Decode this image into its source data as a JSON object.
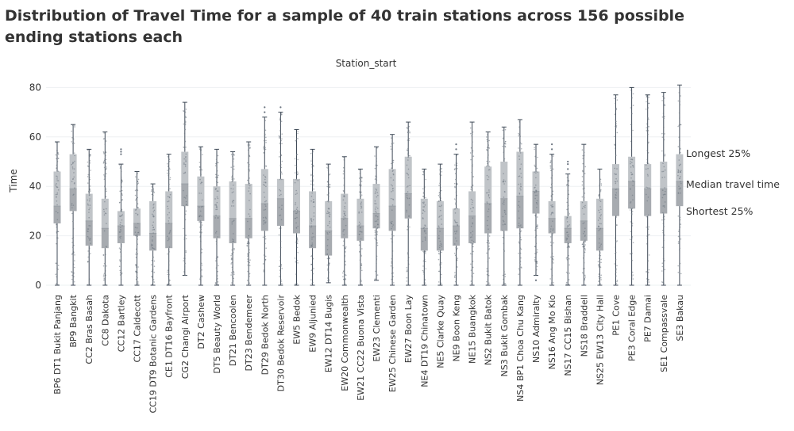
{
  "chart_data": {
    "type": "box",
    "title": "Distribution of Travel Time for a sample of 40 train stations across 156 possible ending stations each",
    "column_header": "Station_start",
    "ylabel": "Time",
    "xlabel": "",
    "ylim": [
      0,
      83
    ],
    "yticks": [
      0,
      20,
      40,
      60,
      80
    ],
    "grid": true,
    "legend_placement": "right",
    "annotations": [
      "Longest 25%",
      "Median travel time",
      "Shortest 25%"
    ],
    "colors": {
      "box": "#c0c4c8",
      "box_lower": "#a7abb0",
      "points": "#6b7480",
      "whisker": "#3f4a57",
      "grid": "#eef0f2"
    },
    "categories": [
      "BP6 DT1 Bukit Panjang",
      "BP9 Bangkit",
      "CC2 Bras Basah",
      "CC8 Dakota",
      "CC12 Bartley",
      "CC17 Caldecott",
      "CC19 DT9 Botanic Gardens",
      "CE1 DT16 Bayfront",
      "CG2 Changi Airport",
      "DT2 Cashew",
      "DT5 Beauty World",
      "DT21 Bencoolen",
      "DT23 Bendemeer",
      "DT29 Bedok North",
      "DT30 Bedok Reservoir",
      "EW5 Bedok",
      "EW9 Aljunied",
      "EW12 DT14 Bugis",
      "EW20 Commonwealth",
      "EW21 CC22 Buona Vista",
      "EW23 Clementi",
      "EW25 Chinese Garden",
      "EW27 Boon Lay",
      "NE4 DT19 Chinatown",
      "NE5 Clarke Quay",
      "NE9 Boon Keng",
      "NE15 Buangkok",
      "NS2 Bukit Batok",
      "NS3 Bukit Gombak",
      "NS4 BP1 Choa Chu Kang",
      "NS10 Admiralty",
      "NS16 Ang Mo Kio",
      "NS17 CC15 Bishan",
      "NS18 Braddell",
      "NS25 EW13 City Hall",
      "PE1 Cove",
      "PE3 Coral Edge",
      "PE7 Damai",
      "SE1 Compassvale",
      "SE3 Bakau"
    ],
    "series": [
      {
        "min": [
          0,
          0,
          0,
          0,
          0,
          0,
          0,
          0,
          4,
          0,
          0,
          0,
          0,
          0,
          0,
          0,
          0,
          1,
          0,
          0,
          2,
          0,
          0,
          0,
          0,
          0,
          0,
          0,
          0,
          0,
          4,
          0,
          0,
          0,
          0,
          0,
          0,
          0,
          0,
          0
        ],
        "q1": [
          25,
          30,
          16,
          15,
          17,
          20,
          14,
          15,
          32,
          26,
          19,
          17,
          19,
          22,
          24,
          21,
          15,
          12,
          19,
          18,
          23,
          22,
          27,
          14,
          14,
          16,
          17,
          21,
          22,
          23,
          29,
          21,
          17,
          18,
          14,
          28,
          31,
          28,
          29,
          32
        ],
        "median": [
          32,
          39,
          26,
          23,
          24,
          25,
          21,
          25,
          41,
          32,
          28,
          27,
          27,
          33,
          35,
          30,
          24,
          22,
          27,
          24,
          29,
          32,
          37,
          23,
          23,
          24,
          28,
          33,
          35,
          36,
          38,
          27,
          23,
          26,
          23,
          39,
          42,
          39,
          39,
          42
        ],
        "q3": [
          46,
          53,
          37,
          35,
          30,
          31,
          34,
          38,
          54,
          44,
          40,
          42,
          41,
          47,
          43,
          43,
          38,
          34,
          37,
          35,
          41,
          47,
          52,
          35,
          34,
          31,
          38,
          48,
          50,
          54,
          46,
          34,
          28,
          34,
          35,
          49,
          52,
          49,
          50,
          53
        ],
        "max": [
          58,
          65,
          55,
          62,
          49,
          46,
          41,
          53,
          74,
          56,
          55,
          54,
          58,
          68,
          70,
          63,
          55,
          49,
          52,
          47,
          56,
          61,
          66,
          47,
          49,
          53,
          66,
          62,
          64,
          67,
          57,
          53,
          45,
          57,
          47,
          77,
          80,
          77,
          78,
          81
        ],
        "outliers": [
          [],
          [],
          [],
          [],
          [
            53,
            54,
            55
          ],
          [],
          [],
          [],
          [],
          [],
          [],
          [],
          [],
          [
            70,
            72
          ],
          [
            72
          ],
          [],
          [],
          [],
          [],
          [],
          [],
          [],
          [],
          [],
          [],
          [
            55,
            57
          ],
          [],
          [],
          [],
          [],
          [
            2
          ],
          [
            55,
            57
          ],
          [
            47,
            49,
            50
          ],
          [],
          [],
          [],
          [],
          [],
          [],
          []
        ]
      }
    ]
  }
}
